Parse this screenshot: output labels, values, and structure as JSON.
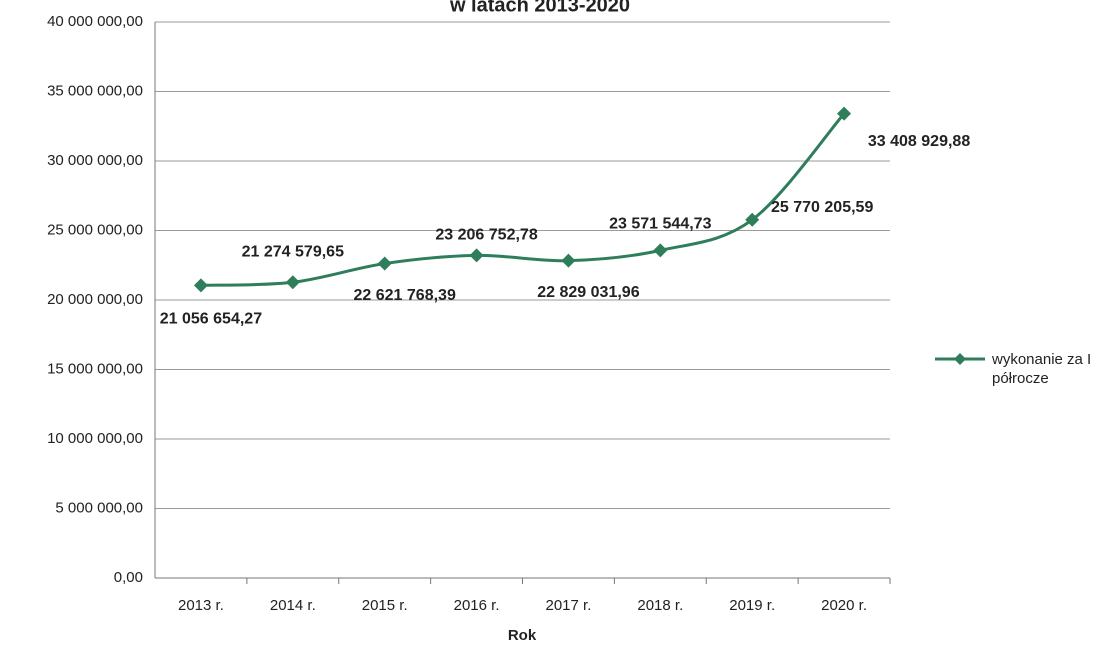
{
  "chart_data": {
    "type": "line",
    "title": "w latach 2013-2020",
    "xlabel": "Rok",
    "categories": [
      "2013 r.",
      "2014 r.",
      "2015 r.",
      "2016 r.",
      "2017 r.",
      "2018 r.",
      "2019 r.",
      "2020 r."
    ],
    "series": [
      {
        "name": "wykonanie za I półrocze",
        "color": "#2e7d5b",
        "values": [
          21056654.27,
          21274579.65,
          22621768.39,
          23206752.78,
          22829031.96,
          23571544.73,
          25770205.59,
          33408929.88
        ],
        "value_labels": [
          "21 056 654,27",
          "21 274 579,65",
          "22 621 768,39",
          "23 206 752,78",
          "22 829 031,96",
          "23 571 544,73",
          "25 770 205,59",
          "33 408 929,88"
        ]
      }
    ],
    "ylim": [
      0,
      40000000
    ],
    "yticks": [
      {
        "value": 0,
        "label": "0,00"
      },
      {
        "value": 5000000,
        "label": "5 000 000,00"
      },
      {
        "value": 10000000,
        "label": "10 000 000,00"
      },
      {
        "value": 15000000,
        "label": "15 000 000,00"
      },
      {
        "value": 20000000,
        "label": "20 000 000,00"
      },
      {
        "value": 25000000,
        "label": "25 000 000,00"
      },
      {
        "value": 30000000,
        "label": "30 000 000,00"
      },
      {
        "value": 35000000,
        "label": "35 000 000,00"
      },
      {
        "value": 40000000,
        "label": "40 000 000,00"
      }
    ],
    "grid": true,
    "legend": "right"
  }
}
